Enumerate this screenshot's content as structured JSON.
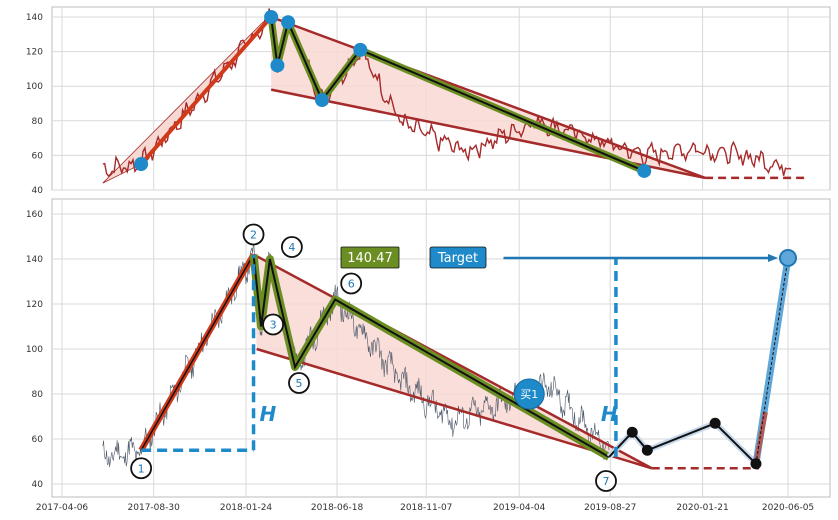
{
  "chart_data": [
    {
      "type": "line",
      "panel": "top",
      "ylim": [
        40,
        145
      ],
      "yticks": [
        40,
        60,
        80,
        100,
        120,
        140
      ],
      "grid": true,
      "pattern_points": [
        {
          "x": "2017-08-10",
          "y": 55
        },
        {
          "x": "2018-03-05",
          "y": 140
        },
        {
          "x": "2018-03-15",
          "y": 112
        },
        {
          "x": "2018-04-01",
          "y": 137
        },
        {
          "x": "2018-05-25",
          "y": 92
        },
        {
          "x": "2018-07-25",
          "y": 121
        },
        {
          "x": "2019-10-20",
          "y": 51
        }
      ]
    },
    {
      "type": "line",
      "panel": "bottom",
      "ylim": [
        35,
        165
      ],
      "yticks": [
        40,
        60,
        80,
        100,
        120,
        140,
        160
      ],
      "grid": true,
      "xtick_labels": [
        "2017-04-06",
        "2017-08-30",
        "2018-01-24",
        "2018-06-18",
        "2018-11-07",
        "2019-04-04",
        "2019-08-27",
        "2020-01-21",
        "2020-06-05"
      ],
      "pattern_points": [
        {
          "label": "1",
          "x": "2017-08-10",
          "y": 55
        },
        {
          "label": "2",
          "x": "2018-02-05",
          "y": 142
        },
        {
          "label": "3",
          "x": "2018-02-17",
          "y": 110
        },
        {
          "label": "4",
          "x": "2018-03-03",
          "y": 140
        },
        {
          "label": "5",
          "x": "2018-04-12",
          "y": 92
        },
        {
          "label": "6",
          "x": "2018-06-15",
          "y": 122
        },
        {
          "label": "7",
          "x": "2019-08-25",
          "y": 52
        }
      ],
      "after_points": [
        {
          "x": "2019-10-01",
          "y": 63
        },
        {
          "x": "2019-10-25",
          "y": 55
        },
        {
          "x": "2020-02-10",
          "y": 67
        },
        {
          "x": "2020-04-15",
          "y": 49
        }
      ],
      "target_value": 140.47,
      "boxes": {
        "value_label": "140.47",
        "target_label": "Target",
        "buy_label": "买1"
      },
      "h_label": "H",
      "colors": {
        "price": "#4a5566",
        "pattern": "#6b8e23",
        "wedge": "#a52a2a",
        "wedge_fill": "#f8d8d2",
        "measure": "#1f8ac9",
        "target_box": "#1f8ac9",
        "value_box": "#6b8e23"
      }
    }
  ]
}
